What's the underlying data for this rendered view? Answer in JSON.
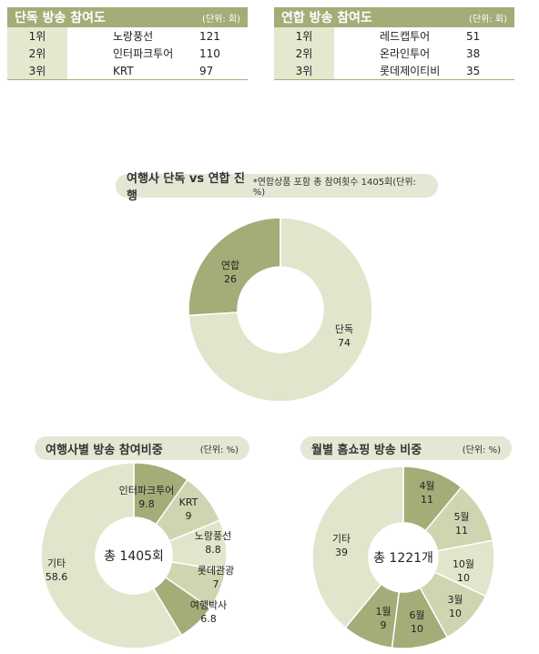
{
  "tables": [
    {
      "title": "단독 방송 참여도",
      "unit": "(단위: 회)",
      "rows": [
        {
          "rank": "1위",
          "name": "노랑풍선",
          "value": "121"
        },
        {
          "rank": "2위",
          "name": "인터파크투어",
          "value": "110"
        },
        {
          "rank": "3위",
          "name": "KRT",
          "value": "97"
        }
      ]
    },
    {
      "title": "연합 방송 참여도",
      "unit": "(단위: 회)",
      "rows": [
        {
          "rank": "1위",
          "name": "레드캡투어",
          "value": "51"
        },
        {
          "rank": "2위",
          "name": "온라인투어",
          "value": "38"
        },
        {
          "rank": "3위",
          "name": "롯데제이티비",
          "value": "35"
        }
      ]
    }
  ],
  "colors": {
    "dark": "#a3ad78",
    "light": "#e2e5cc",
    "mid": "#cfd5b0",
    "pill": "#e4e7d4"
  },
  "chart_data": [
    {
      "type": "pie",
      "title": "여행사 단독 vs 연합 진행",
      "note": "*연합상품 포함 총 참여횟수 1405회(단위: %)",
      "slices": [
        {
          "label": "연합",
          "value": 26
        },
        {
          "label": "단독",
          "value": 74
        }
      ]
    },
    {
      "type": "pie",
      "title": "여행사별 방송 참여비중",
      "note": "(단위: %)",
      "center": "총 1405회",
      "slices": [
        {
          "label": "인터파크투어",
          "value": 9.8
        },
        {
          "label": "KRT",
          "value": 9.0
        },
        {
          "label": "노랑풍선",
          "value": 8.8
        },
        {
          "label": "롯데관광",
          "value": 7.0
        },
        {
          "label": "여행박사",
          "value": 6.8
        },
        {
          "label": "기타",
          "value": 58.6
        }
      ]
    },
    {
      "type": "pie",
      "title": "월별 홈쇼핑 방송 비중",
      "note": "(단위: %)",
      "center": "총 1221개",
      "slices": [
        {
          "label": "4월",
          "value": 11
        },
        {
          "label": "5월",
          "value": 11
        },
        {
          "label": "10월",
          "value": 10
        },
        {
          "label": "3월",
          "value": 10
        },
        {
          "label": "6월",
          "value": 10
        },
        {
          "label": "1월",
          "value": 9
        },
        {
          "label": "기타",
          "value": 39
        }
      ]
    }
  ]
}
